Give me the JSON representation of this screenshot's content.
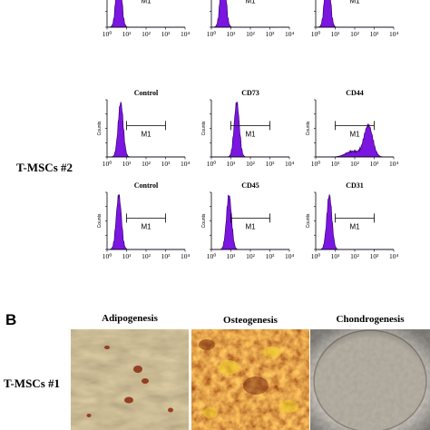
{
  "colors": {
    "histogram_fill": "#7a16e0",
    "histogram_stroke": "#3a0070",
    "axis": "#000000",
    "adipogenesis_base": "#9c8458",
    "osteogenesis_base": "#b85a18",
    "chondrogenesis_base": "#8a8276"
  },
  "panel_a": {
    "count_axis_label": "Counts",
    "gate_label": "M1",
    "x_ticks": [
      "10⁰",
      "10¹",
      "10²",
      "10³",
      "10⁴"
    ],
    "top_row_titles": [
      "",
      "",
      ""
    ],
    "group_2": {
      "row_label": "T-MSCs #2",
      "rows": [
        {
          "titles": [
            "Control",
            "CD73",
            "CD44"
          ]
        },
        {
          "titles": [
            "Control",
            "CD45",
            "CD31"
          ]
        }
      ]
    }
  },
  "panel_b": {
    "letter": "B",
    "columns": [
      "Adipogenesis",
      "Osteogenesis",
      "Chondrogenesis"
    ],
    "row_label": "T-MSCs #1",
    "images": [
      "Adipogenesis",
      "Osteogenesis",
      "Chondrogenesis"
    ]
  },
  "chart_data": [
    {
      "type": "area",
      "panel": "top-left (partially visible)",
      "x_scale": "log",
      "xlim": [
        1,
        10000
      ],
      "gate": {
        "label": "M1",
        "x": [
          10,
          1000
        ]
      },
      "peak_x": 4
    },
    {
      "type": "area",
      "panel": "top-middle (partially visible)",
      "x_scale": "log",
      "xlim": [
        1,
        10000
      ],
      "gate": {
        "label": "M1",
        "x": [
          10,
          1000
        ]
      },
      "peak_x": 4
    },
    {
      "type": "area",
      "panel": "top-right (partially visible)",
      "x_scale": "log",
      "xlim": [
        1,
        10000
      ],
      "gate": {
        "label": "M1",
        "x": [
          10,
          1000
        ]
      },
      "peak_x": 4
    },
    {
      "type": "area",
      "title": "Control",
      "ylabel": "Counts",
      "x_scale": "log",
      "xlim": [
        1,
        10000
      ],
      "gate": {
        "label": "M1",
        "x": [
          10,
          1000
        ]
      },
      "peak_x": 5
    },
    {
      "type": "area",
      "title": "CD73",
      "ylabel": "Counts",
      "x_scale": "log",
      "xlim": [
        1,
        10000
      ],
      "gate": {
        "label": "M1",
        "x": [
          10,
          1000
        ]
      },
      "peak_x": 20
    },
    {
      "type": "area",
      "title": "CD44",
      "ylabel": "Counts",
      "x_scale": "log",
      "xlim": [
        1,
        10000
      ],
      "gate": {
        "label": "M1",
        "x": [
          10,
          1000
        ]
      },
      "peak_x": 500,
      "bimodal_minor_x": 80
    },
    {
      "type": "area",
      "title": "Control",
      "ylabel": "Counts",
      "x_scale": "log",
      "xlim": [
        1,
        10000
      ],
      "gate": {
        "label": "M1",
        "x": [
          10,
          1000
        ]
      },
      "peak_x": 4
    },
    {
      "type": "area",
      "title": "CD45",
      "ylabel": "Counts",
      "x_scale": "log",
      "xlim": [
        1,
        10000
      ],
      "gate": {
        "label": "M1",
        "x": [
          10,
          1000
        ]
      },
      "peak_x": 8
    },
    {
      "type": "area",
      "title": "CD31",
      "ylabel": "Counts",
      "x_scale": "log",
      "xlim": [
        1,
        10000
      ],
      "gate": {
        "label": "M1",
        "x": [
          10,
          1000
        ]
      },
      "peak_x": 5
    }
  ]
}
